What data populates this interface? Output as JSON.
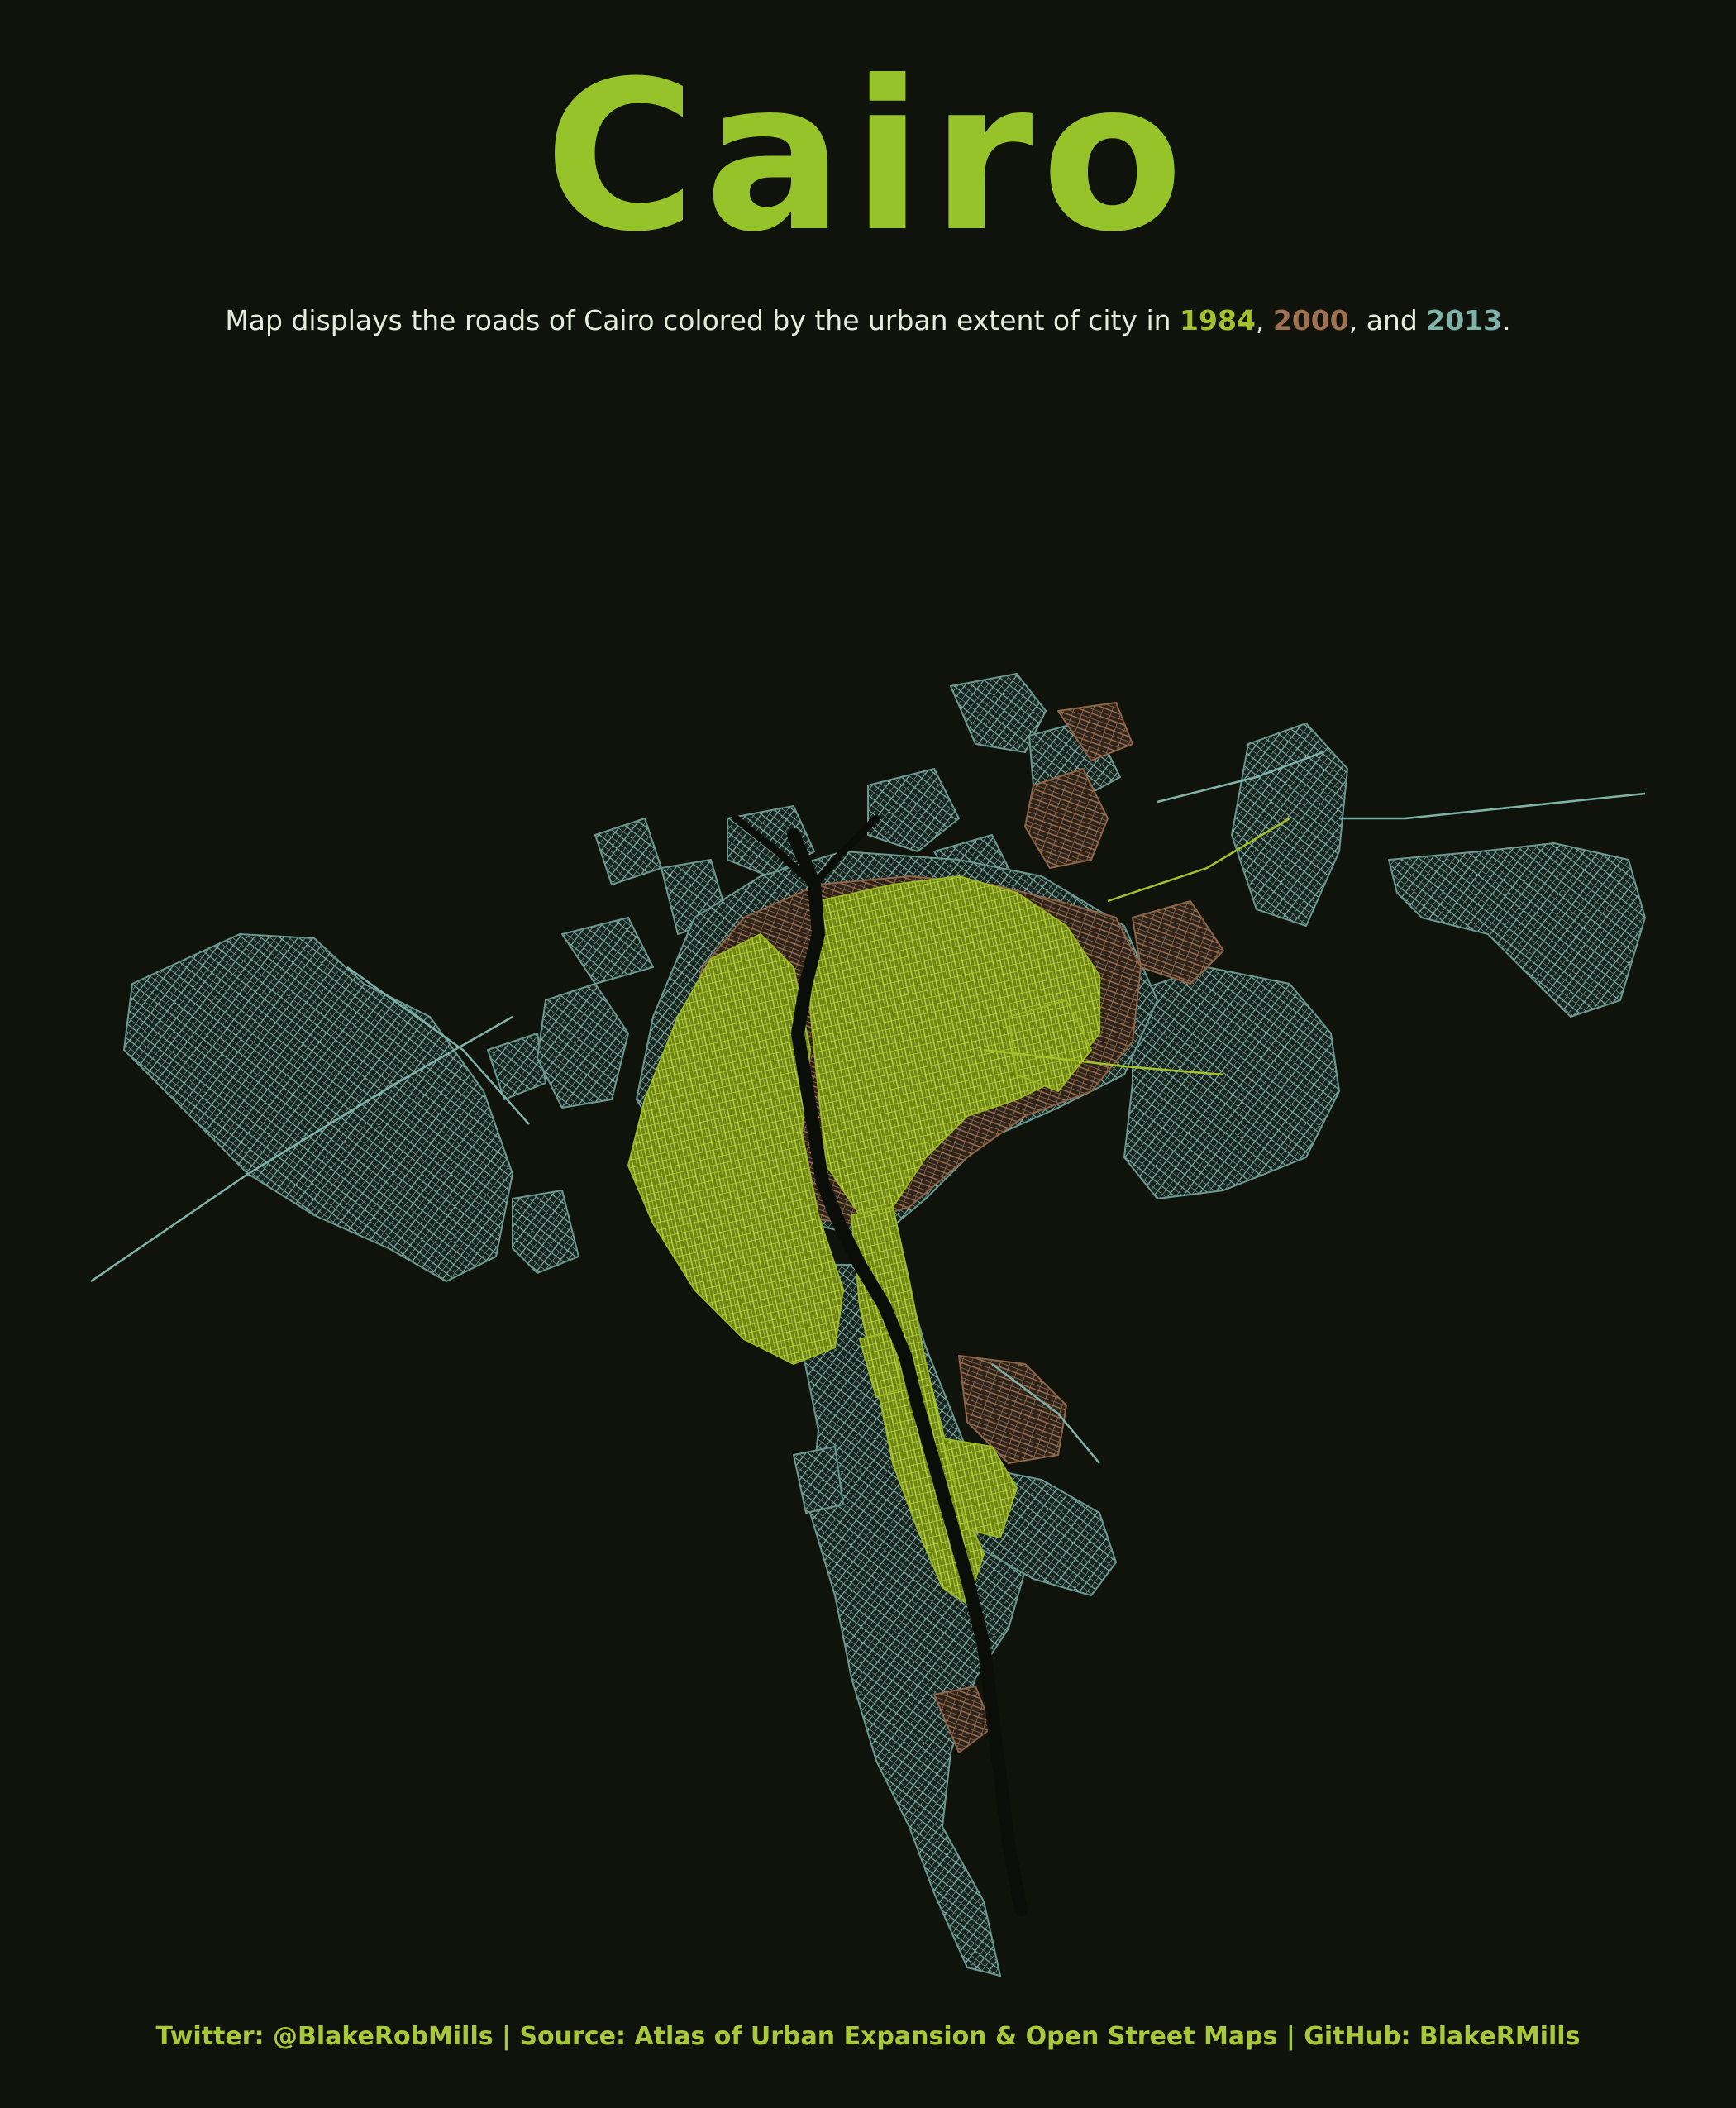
{
  "title": "Cairo",
  "subtitle": {
    "prefix": "Map displays the roads of Cairo colored by the urban extent of city in ",
    "year_1": "1984",
    "sep_1": ", ",
    "year_2": "2000",
    "sep_2": ", and ",
    "year_3": "2013",
    "suffix": "."
  },
  "legend": [
    {
      "year": "1984",
      "color": "#a4c02a"
    },
    {
      "year": "2000",
      "color": "#9c7050"
    },
    {
      "year": "2013",
      "color": "#7fb2a8"
    }
  ],
  "colors": {
    "background": "#10130b",
    "title": "#96c22a",
    "footer": "#a8c83a",
    "subtitle_text": "#e4ecdc"
  },
  "footer": "Twitter: @BlakeRobMills | Source: Atlas of Urban Expansion & Open Street Maps | GitHub: BlakeRMills"
}
